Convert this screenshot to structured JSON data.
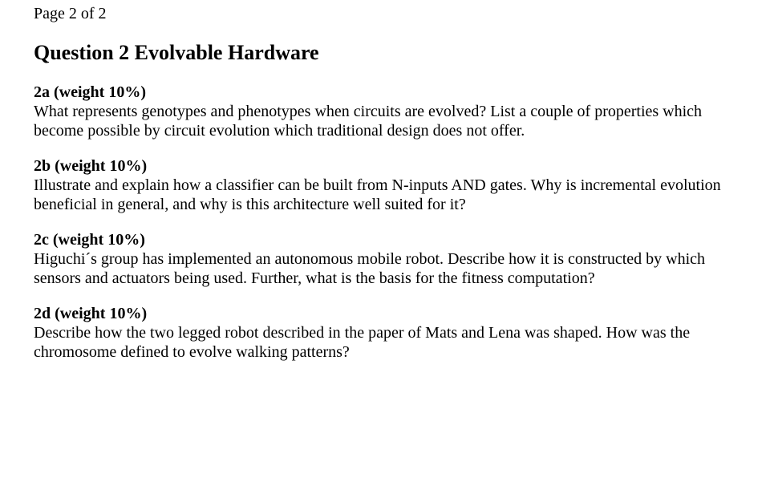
{
  "page_number": "Page 2 of 2",
  "title": "Question 2 Evolvable Hardware",
  "questions": [
    {
      "header": "2a   (weight 10%)",
      "body": "What represents genotypes and phenotypes when circuits are evolved? List a couple of properties which become possible by circuit evolution which traditional design does not offer."
    },
    {
      "header": "2b   (weight 10%)",
      "body": "Illustrate and explain how a classifier can be built from N-inputs AND gates. Why is incremental evolution beneficial in general, and why is this architecture well suited for it?"
    },
    {
      "header": "2c   (weight 10%)",
      "body": "Higuchi´s group has implemented an autonomous mobile robot. Describe how it is constructed by which sensors and actuators being used. Further, what is the basis for the fitness computation?"
    },
    {
      "header": "2d   (weight 10%)",
      "body": "Describe how the two legged robot described in the paper of Mats and Lena was shaped. How was the chromosome defined to evolve walking patterns?"
    }
  ],
  "style": {
    "font_family": "Times New Roman",
    "text_color": "#000000",
    "background_color": "#ffffff",
    "page_num_fontsize": 20,
    "title_fontsize": 26,
    "body_fontsize": 20
  }
}
